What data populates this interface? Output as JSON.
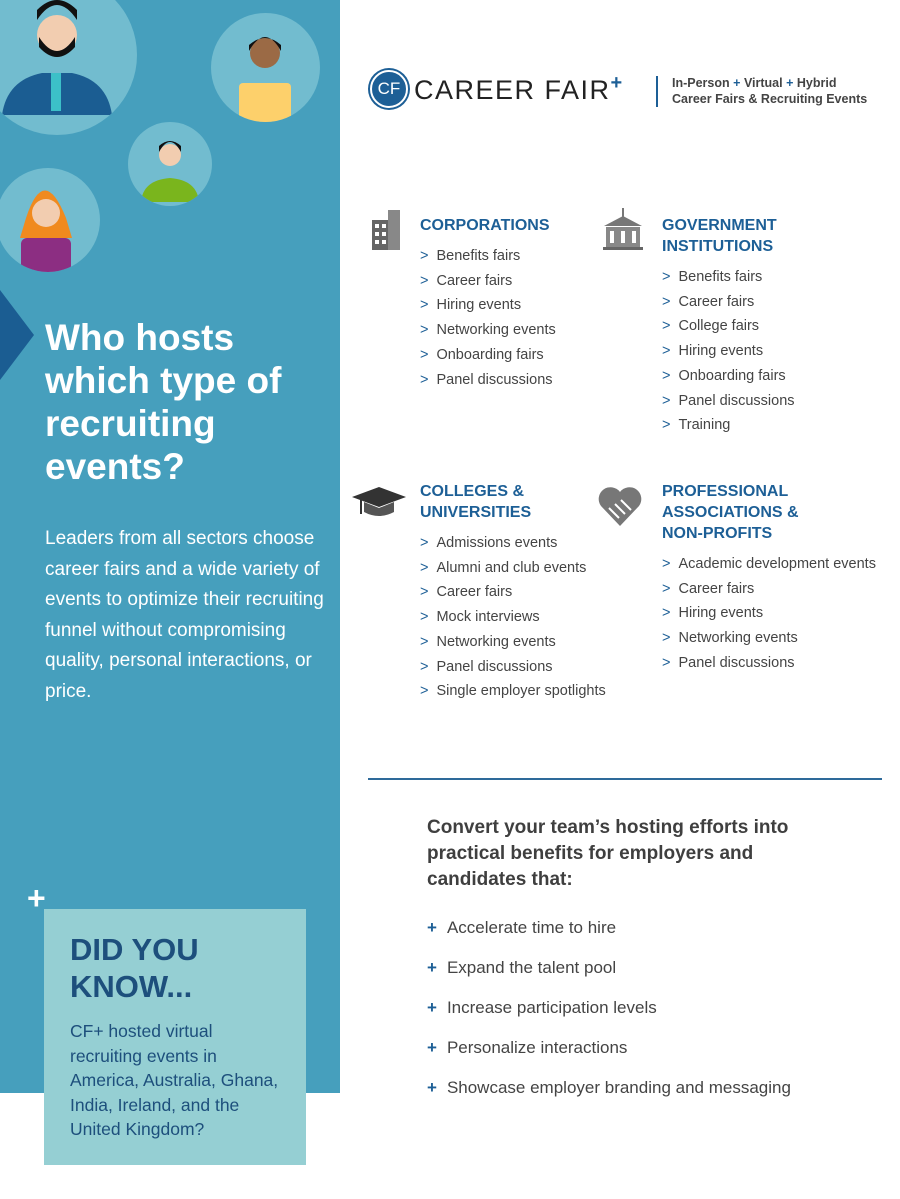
{
  "brand": {
    "logo_mark": "CF",
    "name": "CAREER FAIR",
    "plus": "+",
    "tagline_1a": "In-Person",
    "tagline_1b": "Virtual",
    "tagline_1c": "Hybrid",
    "tagline_sep": "+",
    "tagline_2": "Career Fairs & Recruiting Events"
  },
  "left": {
    "headline": "Who hosts which type of recruiting events?",
    "paragraph": "Leaders from all sectors choose career fairs and a wide variety of events to optimize their recruiting funnel without compromising quality, personal interactions, or price.",
    "plus": "+",
    "did_you_know": {
      "title": "DID YOU KNOW...",
      "text": "CF+ hosted virtual recruiting events in America, Australia, Ghana, India, Ireland, and the United Kingdom?"
    }
  },
  "sections": [
    {
      "title": "CORPORATIONS",
      "icon": "office-building-icon",
      "items": [
        "Benefits fairs",
        "Career fairs",
        "Hiring events",
        "Networking events",
        "Onboarding fairs",
        "Panel discussions"
      ]
    },
    {
      "title": "GOVERNMENT INSTITUTIONS",
      "icon": "government-building-icon",
      "items": [
        "Benefits fairs",
        "Career fairs",
        "College fairs",
        "Hiring events",
        "Onboarding fairs",
        "Panel discussions",
        "Training"
      ]
    },
    {
      "title": "COLLEGES & UNIVERSITIES",
      "icon": "graduation-cap-icon",
      "items": [
        "Admissions events",
        "Alumni and club events",
        "Career fairs",
        "Mock interviews",
        "Networking events",
        "Panel discussions",
        "Single employer spotlights"
      ]
    },
    {
      "title": "PROFESSIONAL ASSOCIATIONS & NON-PROFITS",
      "icon": "handshake-heart-icon",
      "items": [
        "Academic development events",
        "Career fairs",
        "Hiring events",
        "Networking events",
        "Panel discussions"
      ]
    }
  ],
  "bullet_glyph": ">",
  "benefits": {
    "heading": "Convert your team’s hosting efforts into practical benefits for employers and candidates that:",
    "glyph": "+",
    "items": [
      "Accelerate time to hire",
      "Expand the talent pool",
      "Increase participation levels",
      "Personalize interactions",
      "Showcase employer branding and messaging"
    ]
  },
  "colors": {
    "panel": "#469fbd",
    "accent": "#1d5f96",
    "box": "#95cfd3"
  }
}
